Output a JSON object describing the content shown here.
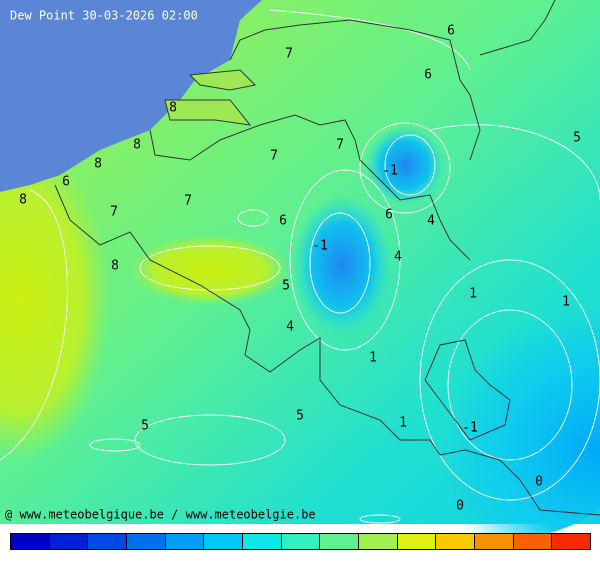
{
  "header": {
    "title": "Dew Point 30-03-2026 02:00"
  },
  "contour_labels": [
    "6",
    "7",
    "6",
    "8",
    "8",
    "7",
    "5",
    "7",
    "8",
    "-1",
    "6",
    "8",
    "7",
    "7",
    "6",
    "6",
    "4",
    "-1",
    "4",
    "8",
    "5",
    "1",
    "1",
    "4",
    "1",
    "5",
    "5",
    "1",
    "-1",
    "0",
    "0"
  ],
  "footer": {
    "credit": "@ www.meteobelgique.be / www.meteobelgie.be"
  }
}
